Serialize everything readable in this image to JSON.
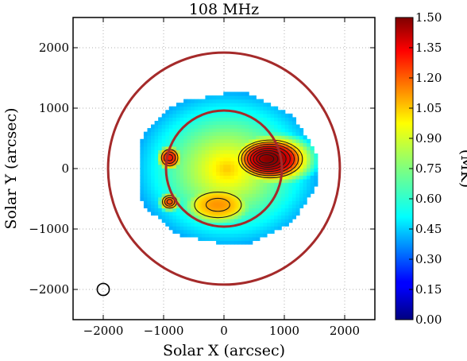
{
  "chart_data": {
    "type": "heatmap",
    "title": "108 MHz",
    "xlabel": "Solar X (arcsec)",
    "ylabel": "Solar Y (arcsec)",
    "xlim": [
      -2500,
      2500
    ],
    "ylim": [
      -2500,
      2500
    ],
    "x_ticks": [
      -2000,
      -1000,
      0,
      1000,
      2000
    ],
    "y_ticks": [
      -2000,
      -1000,
      0,
      1000,
      2000
    ],
    "x_tick_labels": [
      "−2000",
      "−1000",
      "0",
      "1000",
      "2000"
    ],
    "y_tick_labels": [
      "−2000",
      "−1000",
      "0",
      "1000",
      "2000"
    ],
    "grid": true,
    "colorbar": {
      "label": "(MK)",
      "range": [
        0.0,
        1.5
      ],
      "ticks": [
        "0.00",
        "0.15",
        "0.30",
        "0.45",
        "0.60",
        "0.75",
        "0.90",
        "1.05",
        "1.20",
        "1.35",
        "1.50"
      ],
      "colormap": "jet"
    },
    "circles": [
      {
        "name": "solar disk",
        "center": [
          0,
          0
        ],
        "radius": 960,
        "color": "#a52a2a"
      },
      {
        "name": "2 solar radii",
        "center": [
          0,
          0
        ],
        "radius": 1920,
        "color": "#a52a2a"
      },
      {
        "name": "beam",
        "center": [
          -2000,
          -2000
        ],
        "radius": 100,
        "color": "#000000"
      }
    ],
    "emission_region": {
      "x_extent": [
        -1450,
        1550
      ],
      "y_extent": [
        -1250,
        1250
      ],
      "peak_value": 1.5,
      "min_value": 0.45
    },
    "emission_sources": [
      {
        "center": [
          780,
          160
        ],
        "radius_x": 560,
        "radius_y": 330,
        "peak": 1.5
      },
      {
        "center": [
          -900,
          180
        ],
        "radius_x": 170,
        "radius_y": 170,
        "peak": 1.35
      },
      {
        "center": [
          -900,
          -550
        ],
        "radius_x": 150,
        "radius_y": 130,
        "peak": 1.25
      },
      {
        "center": [
          -100,
          -600
        ],
        "radius_x": 550,
        "radius_y": 300,
        "peak": 1.1
      }
    ]
  }
}
